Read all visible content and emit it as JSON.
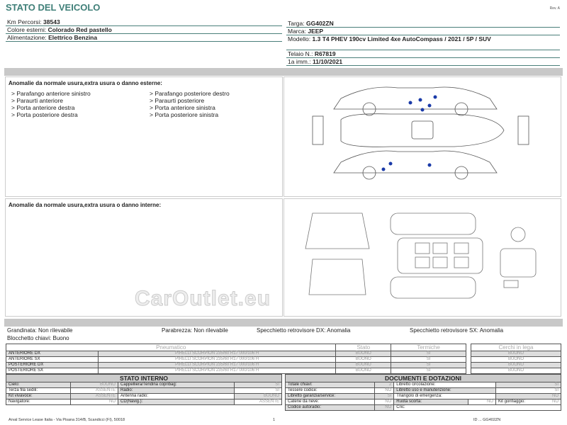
{
  "title": "STATO DEL VEICOLO",
  "rev": "Rev. A",
  "left_info": [
    {
      "label": "Km Percorsi:",
      "value": "38543"
    },
    {
      "label": "Colore esterni:",
      "value": "Colorado Red pastello"
    },
    {
      "label": "Alimentazione:",
      "value": "Elettrico Benzina"
    }
  ],
  "right_info": [
    {
      "label": "Targa:",
      "value": "GG402ZN"
    },
    {
      "label": "Marca:",
      "value": "JEEP"
    },
    {
      "label": "Modello:",
      "value": "1.3 T4 PHEV 190cv Limited 4xe AutoCompass / 2021 / 5P / SUV"
    },
    {
      "label": "Telaio N.:",
      "value": "R67819"
    },
    {
      "label": "1a imm.:",
      "value": "11/10/2021"
    }
  ],
  "exterior": {
    "title": "Anomalie da normale usura,extra usura o danno esterne:",
    "items": [
      "> Parafango anteriore sinistro",
      "> Paraurti anteriore",
      "> Porta anteriore destra",
      "> Porta posteriore destra",
      "> Parafango posteriore destro",
      "> Paraurti posteriore",
      "> Porta anteriore sinistra",
      "> Porta posteriore sinistra"
    ],
    "marker_color": "#1a3aa8"
  },
  "interior": {
    "title": "Anomalie da normale usura,extra usura o danno interne:"
  },
  "checks": {
    "grandinata": "Grandinata: Non rilevabile",
    "parabrezza": "Parabrezza: Non rilevabile",
    "spec_dx": "Specchietto retrovisore DX: Anomalia",
    "spec_sx": "Specchietto retrovisore SX: Anomalia",
    "blocchetto": "Blocchetto chiavi: Buono"
  },
  "tyres": {
    "headers": [
      "Pneumatico",
      "Stato",
      "Termiche",
      "Cerchi in lega"
    ],
    "rows": [
      {
        "pos": "ANTERIORE DX",
        "model": "PIRELLI SCORPION 235/60 R17 000/106 H",
        "stato": "BUONO",
        "term": "SI",
        "cerchi": "BUONO"
      },
      {
        "pos": "ANTERIORE SX",
        "model": "PIRELLI SCORPION 235/60 R17 000/106 H",
        "stato": "BUONO",
        "term": "SI",
        "cerchi": "BUONO"
      },
      {
        "pos": "POSTERIORE DX",
        "model": "PIRELLI SCORPION 235/60 R17 000/106 H",
        "stato": "BUONO",
        "term": "SI",
        "cerchi": "BUONO"
      },
      {
        "pos": "POSTERIORE SX",
        "model": "PIRELLI SCORPION 235/60 R17 000/106 H",
        "stato": "BUONO",
        "term": "SI",
        "cerchi": "BUONO"
      }
    ]
  },
  "interno": {
    "title": "STATO INTERNO",
    "rows": [
      [
        "Cielo:",
        "BUONO",
        "Cappelliera/Tendina copribag:",
        "SI"
      ],
      [
        "Terza fila sedili:",
        "ASSENTE",
        "Radio:",
        "SI"
      ],
      [
        "Kit vivavoce:",
        "ASSENTE",
        "Antenna radio:",
        "BUONO"
      ],
      [
        "Navigatore:",
        "NO",
        "CD(Navig.):",
        "ASSENTE"
      ]
    ]
  },
  "documenti": {
    "title": "DOCUMENTI E DOTAZIONI",
    "rows": [
      [
        "Totale chiavi:",
        "2",
        "Libretto circolazione:",
        "SI"
      ],
      [
        "Tessere codice:",
        "NO",
        "Libretto uso e manutenzione:",
        "SI"
      ],
      [
        "Libretto garanzia/service:",
        "SI",
        "Triangolo di emergenza:",
        "NO"
      ],
      [
        "Catene da neve:",
        "NO",
        "Ruota scorta:",
        "NO"
      ],
      [
        "Codice autoradio:",
        "NO",
        "Cric:",
        ""
      ]
    ],
    "extra": {
      "label": "Kit gonfiaggio:",
      "value": "NO"
    }
  },
  "footer": {
    "address": "Arval Service Lease Italia - Via Pisana 314/B, Scandicci (FI), 50018",
    "page": "1",
    "id": "ID ... GG402ZN",
    "watermark": "CarOutlet.eu"
  }
}
